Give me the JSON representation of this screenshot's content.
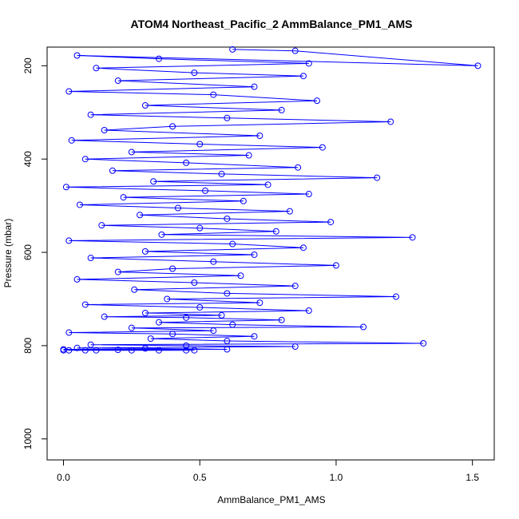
{
  "chart_data": {
    "type": "scatter",
    "title": "ATOM4 Northeast_Pacific_2 AmmBalance_PM1_AMS",
    "xlabel": "AmmBalance_PM1_AMS",
    "ylabel": "Pressure (mbar)",
    "xlim": [
      -0.06,
      1.58
    ],
    "ylim": [
      1045,
      160
    ],
    "y_inverted": true,
    "x_ticks": [
      0.0,
      0.5,
      1.0,
      1.5
    ],
    "x_tick_labels": [
      "0.0",
      "0.5",
      "1.0",
      "1.5"
    ],
    "y_ticks": [
      200,
      400,
      600,
      800,
      1000
    ],
    "y_tick_labels": [
      "200",
      "400",
      "600",
      "800",
      "1000"
    ],
    "grid": false,
    "color": "#0000ff",
    "series": [
      {
        "markers": "open-circle",
        "connected": true,
        "x": [
          0.62,
          0.85,
          1.52,
          0.05,
          0.35,
          0.9,
          0.12,
          0.48,
          0.88,
          0.2,
          0.7,
          0.02,
          0.55,
          0.93,
          0.3,
          0.8,
          0.1,
          0.6,
          1.2,
          0.4,
          0.15,
          0.72,
          0.03,
          0.5,
          0.95,
          0.25,
          0.68,
          0.08,
          0.45,
          0.86,
          0.18,
          0.58,
          1.15,
          0.33,
          0.75,
          0.01,
          0.52,
          0.9,
          0.22,
          0.66,
          0.06,
          0.42,
          0.83,
          0.28,
          0.6,
          0.98,
          0.14,
          0.5,
          0.78,
          0.36,
          1.28,
          0.02,
          0.62,
          0.88,
          0.3,
          0.7,
          0.1,
          0.55,
          1.0,
          0.4,
          0.2,
          0.65,
          0.05,
          0.48,
          0.85,
          0.26,
          0.6,
          1.22,
          0.38,
          0.72,
          0.08,
          0.5,
          0.9,
          0.3,
          0.58,
          0.15,
          0.45,
          0.8,
          0.35,
          0.62,
          1.1,
          0.25,
          0.55,
          0.02,
          0.4,
          0.7,
          0.32,
          0.6,
          1.32,
          0.1,
          0.45,
          0.85,
          0.05,
          0.3,
          0.6,
          0.0,
          0.2,
          0.48,
          0.08,
          0.35,
          0.02,
          0.25,
          0.45,
          0.0,
          0.12
        ],
        "y": [
          165,
          168,
          200,
          178,
          185,
          195,
          205,
          215,
          222,
          232,
          245,
          255,
          262,
          275,
          285,
          295,
          305,
          312,
          320,
          330,
          338,
          350,
          360,
          368,
          375,
          385,
          392,
          400,
          408,
          418,
          425,
          432,
          440,
          448,
          455,
          460,
          468,
          475,
          482,
          490,
          498,
          505,
          512,
          520,
          528,
          535,
          542,
          548,
          555,
          562,
          568,
          575,
          582,
          590,
          598,
          605,
          612,
          620,
          628,
          635,
          642,
          650,
          658,
          665,
          672,
          680,
          688,
          695,
          700,
          708,
          712,
          718,
          725,
          730,
          735,
          738,
          740,
          745,
          750,
          755,
          760,
          762,
          768,
          772,
          775,
          780,
          785,
          790,
          795,
          798,
          800,
          802,
          805,
          806,
          808,
          808,
          809,
          810,
          810,
          810,
          810,
          810,
          810,
          810,
          810
        ],
        "note": "representative subset of a dense cloud of open-circle markers joined by lines; points concentrated 0.0-1.0 between 160-810 mbar"
      }
    ]
  }
}
